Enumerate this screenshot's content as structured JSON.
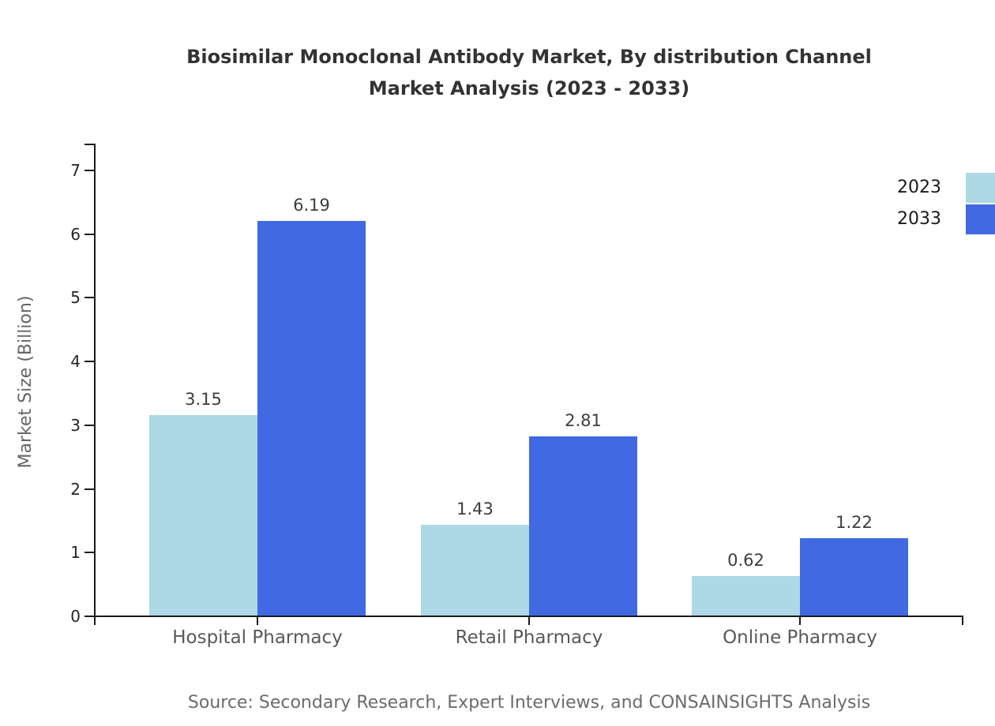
{
  "title": {
    "line1": "Biosimilar Monoclonal Antibody Market, By distribution Channel",
    "line2": "Market Analysis (2023 - 2033)"
  },
  "chart_data": {
    "type": "bar",
    "categories": [
      "Hospital Pharmacy",
      "Retail Pharmacy",
      "Online Pharmacy"
    ],
    "series": [
      {
        "name": "2023",
        "color": "#ADD8E6",
        "values": [
          3.15,
          1.43,
          0.62
        ]
      },
      {
        "name": "2033",
        "color": "#4169E1",
        "values": [
          6.19,
          2.81,
          1.22
        ]
      }
    ],
    "ylabel": "Market Size (Billion)",
    "xlabel": "",
    "ylim": [
      0,
      7
    ],
    "yticks": [
      0,
      1,
      2,
      3,
      4,
      5,
      6,
      7
    ],
    "grid": false,
    "legend_position": "top-right",
    "value_labels_shown": true
  },
  "footer": {
    "source": "Source: Secondary Research, Expert Interviews, and CONSAINSIGHTS Analysis"
  },
  "colors": {
    "series_2023": "#ADD8E6",
    "series_2033": "#4169E1",
    "title_text": "#333333",
    "axis_line": "#1a1a1a",
    "tick_label": "#262626",
    "category_label": "#595959",
    "value_label": "#3d3d3d",
    "axis_title_text": "#666666",
    "source_text": "#6b6b6b",
    "background": "#ffffff"
  }
}
